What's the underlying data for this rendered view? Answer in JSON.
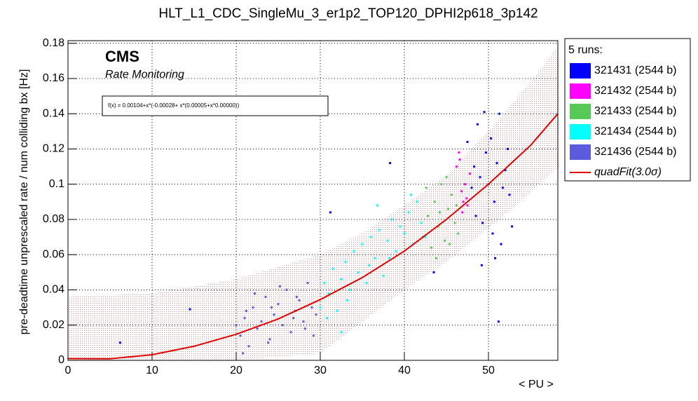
{
  "chart_data": {
    "type": "scatter",
    "title": "HLT_L1_CDC_SingleMu_3_er1p2_TOP120_DPHI2p618_3p142",
    "xlabel": "< PU >",
    "ylabel": "pre-deadtime unprescaled rate / num colliding bx [Hz]",
    "annotations": [
      "CMS",
      "Rate Monitoring",
      "f(x) = 0.00104+x*(-0.00028+ x*(0.00005+x*0.00000))"
    ],
    "legend_title": "5 runs:",
    "legend": "outside-right",
    "grid": true,
    "xlim": [
      0,
      58.25
    ],
    "ylim": [
      0,
      0.1815
    ],
    "xticks": [
      0,
      10,
      20,
      30,
      40,
      50
    ],
    "yticks": [
      0,
      0.02,
      0.04,
      0.06,
      0.08,
      0.1,
      0.12,
      0.14,
      0.16,
      0.18
    ],
    "fit_band": {
      "color": "#b22222",
      "x": [
        0,
        10,
        20,
        30,
        35,
        40,
        45,
        50,
        55,
        58.25
      ],
      "upper": [
        0.036,
        0.038,
        0.046,
        0.06,
        0.072,
        0.088,
        0.105,
        0.13,
        0.158,
        0.178
      ],
      "lower": [
        0,
        0,
        0,
        0.004,
        0.022,
        0.04,
        0.056,
        0.075,
        0.095,
        0.11
      ]
    },
    "series": [
      {
        "name": "321431 (2544 b)",
        "color": "#0000ff",
        "x": [
          47.5,
          48,
          48.3,
          48.7,
          49,
          49.3,
          49.7,
          50,
          50.3,
          50.7,
          51,
          51.3,
          51.7,
          52,
          52.5,
          48.5,
          49.5,
          50.5,
          51.5,
          52.3,
          49.2,
          50.8,
          52.8,
          38.3,
          31.2,
          43.5,
          14.5,
          6.2,
          51.2
        ],
        "values": [
          0.124,
          0.098,
          0.11,
          0.134,
          0.104,
          0.078,
          0.118,
          0.1,
          0.126,
          0.09,
          0.112,
          0.14,
          0.098,
          0.108,
          0.094,
          0.082,
          0.141,
          0.072,
          0.066,
          0.12,
          0.054,
          0.058,
          0.076,
          0.112,
          0.084,
          0.05,
          0.029,
          0.01,
          0.022
        ]
      },
      {
        "name": "321432 (2544 b)",
        "color": "#ff00ff",
        "x": [
          46.2,
          46.5,
          46.8,
          47,
          47.2,
          47.5,
          47.8,
          46.6,
          47.4,
          46.9
        ],
        "values": [
          0.11,
          0.118,
          0.096,
          0.09,
          0.1,
          0.088,
          0.106,
          0.114,
          0.092,
          0.084
        ]
      },
      {
        "name": "321433 (2544 b)",
        "color": "#56c956",
        "x": [
          42.2,
          42.8,
          43.2,
          43.6,
          44,
          44.4,
          44.8,
          45.2,
          45.6,
          46,
          46.4,
          42.6,
          43.8,
          45,
          46.2,
          44.2,
          45.4
        ],
        "values": [
          0.07,
          0.082,
          0.064,
          0.09,
          0.076,
          0.1,
          0.068,
          0.086,
          0.094,
          0.078,
          0.072,
          0.098,
          0.058,
          0.104,
          0.088,
          0.084,
          0.066
        ]
      },
      {
        "name": "321434 (2544 b)",
        "color": "#00ffff",
        "x": [
          30,
          30.5,
          31,
          31.5,
          32,
          32.5,
          33,
          33.5,
          34,
          34.5,
          35,
          35.5,
          36,
          36.5,
          37,
          37.5,
          38,
          38.5,
          39,
          39.5,
          40,
          40.5,
          41,
          41.5,
          42,
          30.8,
          33.2,
          35.8,
          38.2,
          40.8,
          42.5,
          32.5,
          36.8
        ],
        "values": [
          0.03,
          0.044,
          0.038,
          0.052,
          0.028,
          0.046,
          0.056,
          0.04,
          0.062,
          0.05,
          0.066,
          0.044,
          0.07,
          0.058,
          0.074,
          0.048,
          0.068,
          0.08,
          0.062,
          0.076,
          0.072,
          0.084,
          0.066,
          0.09,
          0.078,
          0.024,
          0.034,
          0.054,
          0.058,
          0.094,
          0.07,
          0.016,
          0.088
        ]
      },
      {
        "name": "321436 (2544 b)",
        "color": "#5a5adc",
        "x": [
          20,
          20.5,
          21,
          21.5,
          22,
          22.5,
          23,
          23.5,
          24,
          24.5,
          25,
          25.5,
          26,
          26.5,
          27,
          27.5,
          28,
          28.5,
          29,
          29.5,
          20.8,
          22.2,
          23.8,
          25.2,
          26.8,
          28.2,
          21.2,
          24.2,
          27.2,
          29.2
        ],
        "values": [
          0.02,
          0.014,
          0.024,
          0.008,
          0.03,
          0.018,
          0.022,
          0.036,
          0.012,
          0.026,
          0.032,
          0.02,
          0.04,
          0.016,
          0.028,
          0.034,
          0.022,
          0.044,
          0.03,
          0.026,
          0.004,
          0.038,
          0.01,
          0.042,
          0.024,
          0.018,
          0.028,
          0.03,
          0.036,
          0.014
        ]
      },
      {
        "name": "quadFit(3.0σ)",
        "color": "#e00000",
        "type": "line",
        "x": [
          0,
          5,
          10,
          15,
          20,
          25,
          30,
          35,
          40,
          45,
          50,
          55,
          58.25
        ],
        "values": [
          0.001,
          0.0009,
          0.0032,
          0.008,
          0.0148,
          0.0235,
          0.0345,
          0.047,
          0.062,
          0.08,
          0.1,
          0.122,
          0.14
        ]
      }
    ]
  }
}
